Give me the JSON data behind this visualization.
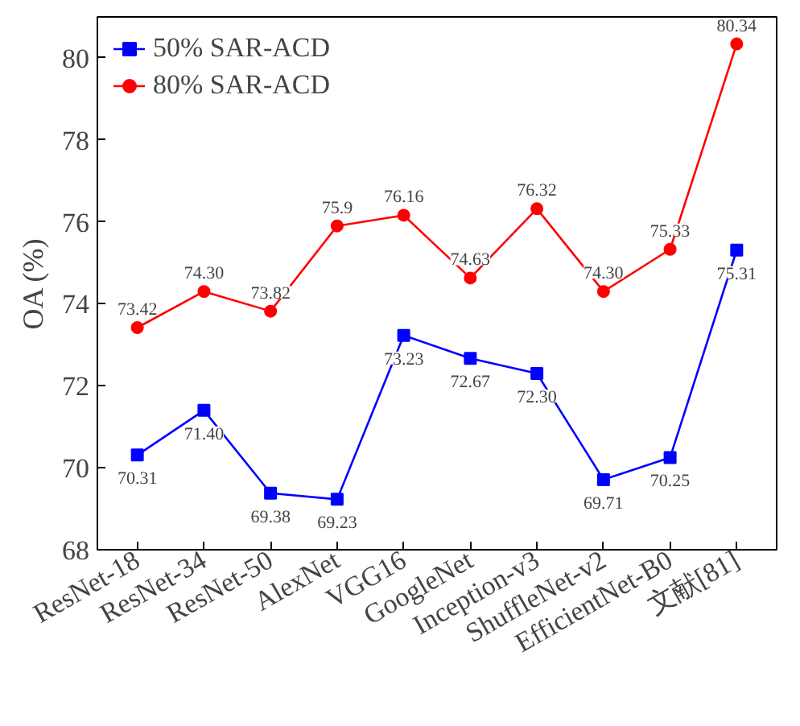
{
  "chart_data": {
    "type": "line",
    "ylabel": "OA (%)",
    "categories": [
      "ResNet-18",
      "ResNet-34",
      "ResNet-50",
      "AlexNet",
      "VGG16",
      "GoogleNet",
      "Inception-v3",
      "ShuffleNet-v2",
      "EfficientNet-B0",
      "文献[81]"
    ],
    "series": [
      {
        "name": "50% SAR-ACD",
        "color": "#0000ff",
        "marker": "square",
        "values": [
          70.31,
          71.4,
          69.38,
          69.23,
          73.23,
          72.67,
          72.3,
          69.71,
          70.25,
          75.31
        ],
        "value_labels": [
          "70.31",
          "71.40",
          "69.38",
          "69.23",
          "73.23",
          "72.67",
          "72.30",
          "69.71",
          "70.25",
          "75.31"
        ]
      },
      {
        "name": "80% SAR-ACD",
        "color": "#ff0000",
        "marker": "circle",
        "values": [
          73.42,
          74.3,
          73.82,
          75.9,
          76.16,
          74.63,
          76.32,
          74.3,
          75.33,
          80.34
        ],
        "value_labels": [
          "73.42",
          "74.30",
          "73.82",
          "75.9",
          "76.16",
          "74.63",
          "76.32",
          "74.30",
          "75.33",
          "80.34"
        ]
      }
    ],
    "ylim": [
      68,
      81
    ],
    "yticks": [
      68,
      70,
      72,
      74,
      76,
      78,
      80
    ],
    "grid": false,
    "legend": "top left",
    "line_style": "solid"
  }
}
